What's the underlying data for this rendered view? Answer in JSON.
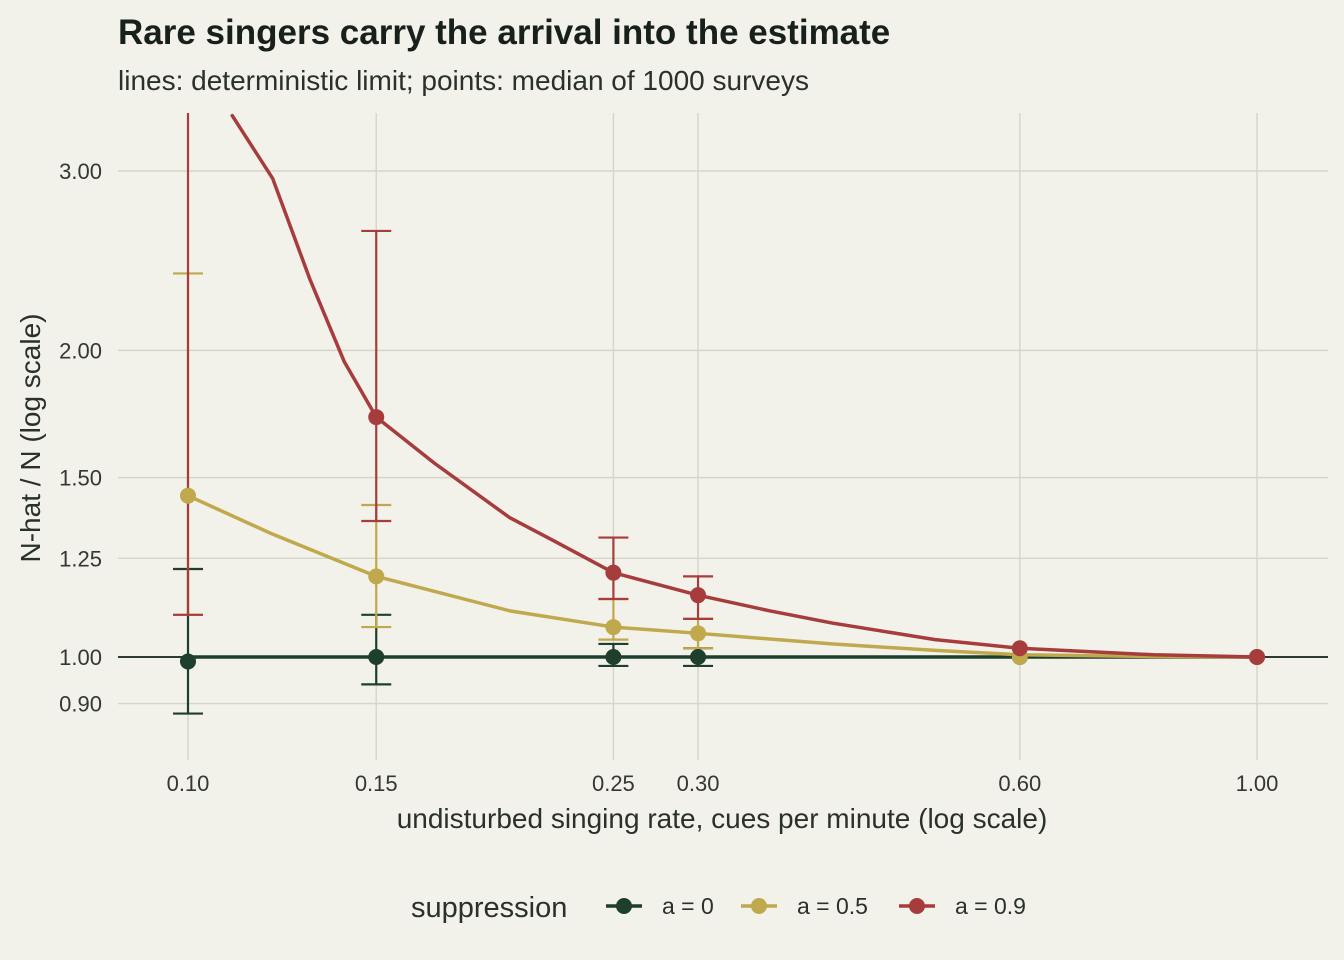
{
  "chart_data": {
    "type": "line",
    "title": "Rare singers carry the arrival into the estimate",
    "subtitle": "lines: deterministic limit; points: median of 1000 surveys",
    "xlabel": "undisturbed singing rate, cues per minute (log scale)",
    "ylabel": "N-hat / N (log scale)",
    "x_scale": "log",
    "y_scale": "log",
    "xlim": [
      0.09,
      1.1
    ],
    "ylim": [
      0.82,
      3.35
    ],
    "x_ticks": [
      "0.10",
      "0.15",
      "0.25",
      "0.30",
      "0.60",
      "1.00"
    ],
    "x_tick_values": [
      0.1,
      0.15,
      0.25,
      0.3,
      0.6,
      1.0
    ],
    "y_ticks": [
      "0.90",
      "1.00",
      "1.25",
      "1.50",
      "2.00",
      "3.00"
    ],
    "y_tick_values": [
      0.9,
      1.0,
      1.25,
      1.5,
      2.0,
      3.0
    ],
    "reference_line": 1.0,
    "grid": true,
    "legend_position": "bottom",
    "legend_title": "suppression",
    "series": [
      {
        "name": "a = 0",
        "color": "#1d3f2c",
        "line": {
          "x": [
            0.1,
            1.0
          ],
          "y": [
            1.0,
            1.0
          ]
        },
        "points": {
          "x": [
            0.1,
            0.15,
            0.25,
            0.3,
            0.6,
            1.0
          ],
          "y": [
            0.99,
            1.0,
            1.0,
            1.0,
            1.0,
            1.0
          ],
          "lo": [
            0.88,
            0.94,
            0.98,
            0.98,
            null,
            null
          ],
          "hi": [
            1.22,
            1.1,
            1.03,
            1.02,
            null,
            null
          ]
        }
      },
      {
        "name": "a = 0.5",
        "color": "#c0a84c",
        "line": {
          "x": [
            0.1,
            0.12,
            0.15,
            0.2,
            0.25,
            0.3,
            0.4,
            0.5,
            0.6,
            0.8,
            1.0
          ],
          "y": [
            1.44,
            1.32,
            1.2,
            1.11,
            1.07,
            1.055,
            1.03,
            1.015,
            1.005,
            1.001,
            1.0
          ]
        },
        "points": {
          "x": [
            0.1,
            0.15,
            0.25,
            0.3,
            0.6,
            1.0
          ],
          "y": [
            1.44,
            1.2,
            1.07,
            1.055,
            1.0,
            1.0
          ],
          "lo": [
            1.1,
            1.07,
            1.04,
            1.02,
            null,
            null
          ],
          "hi": [
            2.38,
            1.41,
            1.14,
            1.09,
            null,
            null
          ]
        }
      },
      {
        "name": "a = 0.9",
        "color": "#a63d3c",
        "line": {
          "x": [
            0.11,
            0.12,
            0.13,
            0.14,
            0.15,
            0.17,
            0.2,
            0.22,
            0.25,
            0.3,
            0.35,
            0.4,
            0.5,
            0.6,
            0.8,
            1.0
          ],
          "y": [
            3.4,
            2.95,
            2.35,
            1.95,
            1.72,
            1.55,
            1.37,
            1.3,
            1.21,
            1.15,
            1.11,
            1.08,
            1.04,
            1.02,
            1.005,
            1.0
          ]
        },
        "points": {
          "x": [
            0.1,
            0.15,
            0.25,
            0.3,
            0.6,
            1.0
          ],
          "y": [
            null,
            1.72,
            1.21,
            1.15,
            1.02,
            1.0
          ],
          "lo": [
            1.1,
            1.36,
            1.14,
            1.09,
            null,
            null
          ],
          "hi": [
            3.5,
            2.62,
            1.31,
            1.2,
            null,
            null
          ]
        }
      }
    ]
  }
}
